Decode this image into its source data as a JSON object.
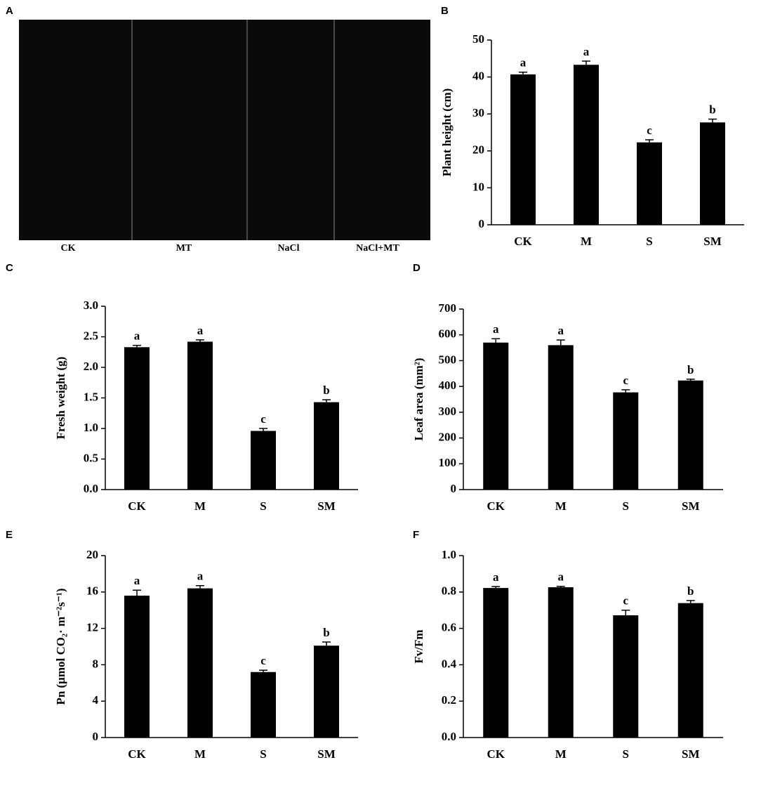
{
  "photo": {
    "panel": "A",
    "labels": [
      "CK",
      "MT",
      "NaCl",
      "NaCl+MT"
    ]
  },
  "chart_data": [
    {
      "type": "bar",
      "panel": "B",
      "ylabel": "Plant height (cm)",
      "color": "#000000",
      "categories": [
        "CK",
        "M",
        "S",
        "SM"
      ],
      "values": [
        40.7,
        43.3,
        22.3,
        27.7
      ],
      "errors": [
        0.6,
        1.0,
        0.7,
        0.9
      ],
      "annotations": [
        "a",
        "a",
        "c",
        "b"
      ],
      "ylim": [
        0,
        50
      ],
      "yticks": [
        0,
        10,
        20,
        30,
        40,
        50
      ]
    },
    {
      "type": "bar",
      "panel": "C",
      "ylabel": "Fresh weight (g)",
      "color": "#000000",
      "categories": [
        "CK",
        "M",
        "S",
        "SM"
      ],
      "values": [
        2.33,
        2.42,
        0.96,
        1.43
      ],
      "errors": [
        0.03,
        0.03,
        0.04,
        0.04
      ],
      "annotations": [
        "a",
        "a",
        "c",
        "b"
      ],
      "ylim": [
        0,
        3
      ],
      "yticks": [
        {
          "value": 0,
          "label": "0.0"
        },
        0.5,
        {
          "value": 1,
          "label": "1.0"
        },
        1.5,
        {
          "value": 2,
          "label": "2.0"
        },
        2.5,
        {
          "value": 3,
          "label": "3.0"
        }
      ]
    },
    {
      "type": "bar",
      "panel": "D",
      "ylabel": "Leaf area (mm²)",
      "color": "#000000",
      "categories": [
        "CK",
        "M",
        "S",
        "SM"
      ],
      "values": [
        570,
        560,
        377,
        423
      ],
      "errors": [
        15,
        20,
        10,
        5
      ],
      "annotations": [
        "a",
        "a",
        "c",
        "b"
      ],
      "ylim": [
        0,
        700
      ],
      "yticks": [
        0,
        100,
        200,
        300,
        400,
        500,
        600,
        700
      ]
    },
    {
      "type": "bar",
      "panel": "E",
      "ylabel": "Pn (μmol CO₂· m⁻²s⁻¹)",
      "color": "#000000",
      "categories": [
        "CK",
        "M",
        "S",
        "SM"
      ],
      "values": [
        15.6,
        16.4,
        7.2,
        10.1
      ],
      "errors": [
        0.6,
        0.3,
        0.2,
        0.4
      ],
      "annotations": [
        "a",
        "a",
        "c",
        "b"
      ],
      "ylim": [
        0,
        20
      ],
      "yticks": [
        0,
        4,
        8,
        12,
        16,
        20
      ]
    },
    {
      "type": "bar",
      "panel": "F",
      "ylabel": "Fv/Fm",
      "color": "#000000",
      "categories": [
        "CK",
        "M",
        "S",
        "SM"
      ],
      "values": [
        0.822,
        0.826,
        0.672,
        0.739
      ],
      "errors": [
        0.008,
        0.005,
        0.028,
        0.014
      ],
      "annotations": [
        "a",
        "a",
        "c",
        "b"
      ],
      "ylim": [
        0,
        1
      ],
      "yticks": [
        {
          "value": 0,
          "label": "0.0"
        },
        {
          "value": 0.2,
          "label": "0.2"
        },
        {
          "value": 0.4,
          "label": "0.4"
        },
        {
          "value": 0.6,
          "label": "0.6"
        },
        {
          "value": 0.8,
          "label": "0.8"
        },
        {
          "value": 1,
          "label": "1.0"
        }
      ]
    }
  ]
}
